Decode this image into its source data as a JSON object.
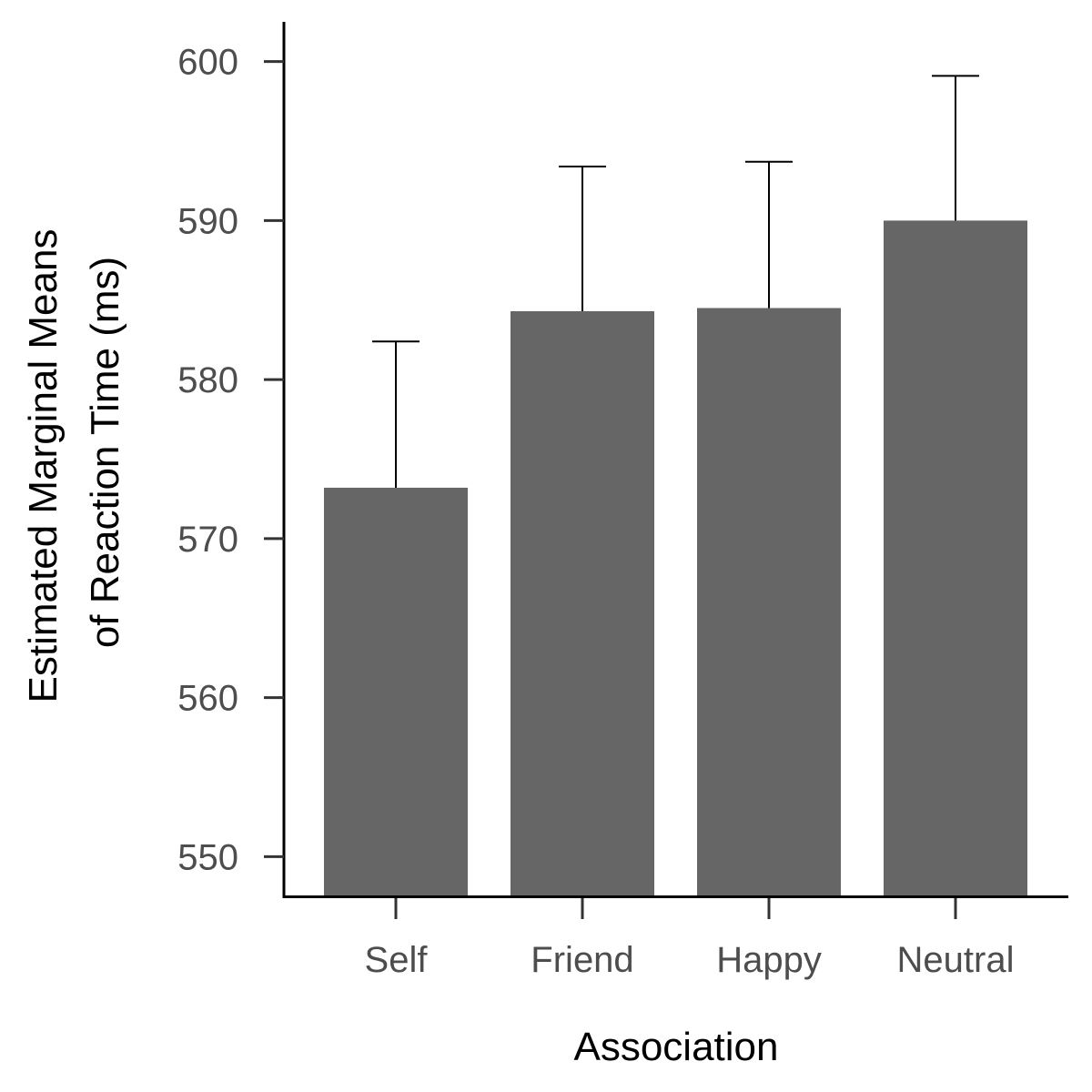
{
  "chart_data": {
    "type": "bar",
    "title": "",
    "xlabel": "Association",
    "ylabel_lines": [
      "Estimated Marginal Means",
      "of Reaction Time (ms)"
    ],
    "categories": [
      "Self",
      "Friend",
      "Happy",
      "Neutral"
    ],
    "values": [
      573.2,
      584.3,
      584.5,
      590.0
    ],
    "error_upper": [
      582.4,
      593.4,
      593.7,
      599.1
    ],
    "ylim": [
      547.5,
      602.5
    ],
    "yticks": [
      550,
      560,
      570,
      580,
      590,
      600
    ],
    "bar_color": "#666666",
    "grid": false,
    "legend": "none"
  }
}
